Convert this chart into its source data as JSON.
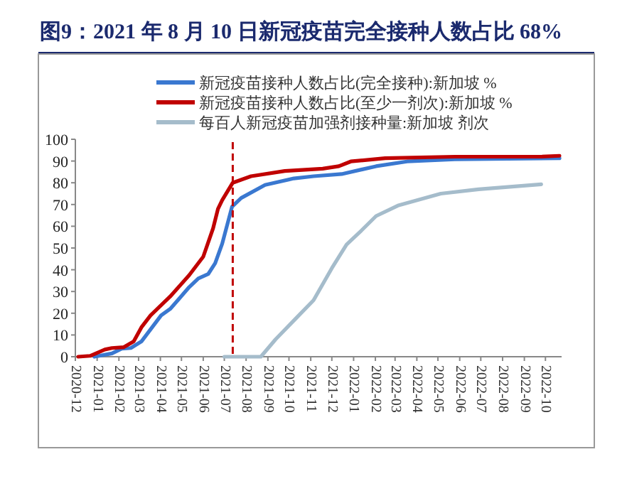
{
  "chart_data": {
    "type": "line",
    "title": "图9：2021 年 8 月 10 日新冠疫苗完全接种人数占比 68%",
    "series": [
      {
        "name": "新冠疫苗接种人数占比(完全接种):新加坡 %",
        "color": "#3a78d0",
        "x": [
          "2020-12-28",
          "2021-01-22",
          "2021-02-05",
          "2021-02-18",
          "2021-03-05",
          "2021-04-02",
          "2021-04-15",
          "2021-05-12",
          "2021-05-25",
          "2021-06-08",
          "2021-06-18",
          "2021-06-28",
          "2021-07-12",
          "2021-07-25",
          "2021-08-28",
          "2021-10-08",
          "2021-11-05",
          "2021-12-15",
          "2022-02-02",
          "2022-03-18",
          "2022-05-25",
          "2022-10-21"
        ],
        "values": [
          0,
          1.5,
          3.7,
          4,
          7,
          19,
          22,
          32,
          36,
          38,
          43,
          52,
          69,
          73,
          79,
          82,
          83,
          84,
          87.6,
          89.8,
          90.8,
          91.3
        ]
      },
      {
        "name": "新冠疫苗接种人数占比(至少一剂次):新加坡 %",
        "color": "#c00000",
        "x": [
          "2020-12-05",
          "2020-12-22",
          "2021-01-12",
          "2021-01-22",
          "2021-02-08",
          "2021-02-22",
          "2021-03-05",
          "2021-03-18",
          "2021-04-15",
          "2021-05-12",
          "2021-06-01",
          "2021-06-15",
          "2021-06-22",
          "2021-06-28",
          "2021-07-13",
          "2021-08-08",
          "2021-09-25",
          "2021-11-18",
          "2021-12-11",
          "2021-12-28",
          "2022-02-15",
          "2022-05-25",
          "2022-09-25",
          "2022-10-21"
        ],
        "values": [
          0,
          0.4,
          3.3,
          4,
          4.4,
          7,
          13.5,
          19,
          27.7,
          37.5,
          46,
          59,
          68,
          72,
          80,
          83,
          85.4,
          86.5,
          87.6,
          89.8,
          91.3,
          92,
          92,
          92.4
        ]
      },
      {
        "name": "每百人新冠疫苗加强剂接种量:新加坡 剂次",
        "color": "#a5bccb",
        "x": [
          "2021-07-01",
          "2021-08-22",
          "2021-09-12",
          "2021-10-15",
          "2021-11-05",
          "2021-12-01",
          "2021-12-22",
          "2022-01-12",
          "2022-02-02",
          "2022-03-05",
          "2022-05-05",
          "2022-06-28",
          "2022-09-25"
        ],
        "values": [
          0,
          0,
          8,
          19,
          26,
          40.7,
          51.6,
          58,
          64.7,
          69.5,
          75,
          77,
          79.3
        ]
      }
    ],
    "xlim": [
      "2020-12-01",
      "2022-10-24"
    ],
    "xticks": [
      "2020-12",
      "2021-01",
      "2021-02",
      "2021-03",
      "2021-04",
      "2021-05",
      "2021-06",
      "2021-07",
      "2021-08",
      "2021-09",
      "2021-10",
      "2021-11",
      "2021-12",
      "2022-01",
      "2022-02",
      "2022-03",
      "2022-04",
      "2022-05",
      "2022-06",
      "2022-07",
      "2022-08",
      "2022-09",
      "2022-10"
    ],
    "ylim": [
      0,
      100
    ],
    "yticks": [
      0,
      10,
      20,
      30,
      40,
      50,
      60,
      70,
      80,
      90,
      100
    ],
    "ref_lines": [
      {
        "axis": "x",
        "value": "2021-07-13",
        "color": "#c00000",
        "line_style": "dashed"
      }
    ],
    "legend": "top",
    "grid": false,
    "marker": "none",
    "line_style": "solid"
  }
}
